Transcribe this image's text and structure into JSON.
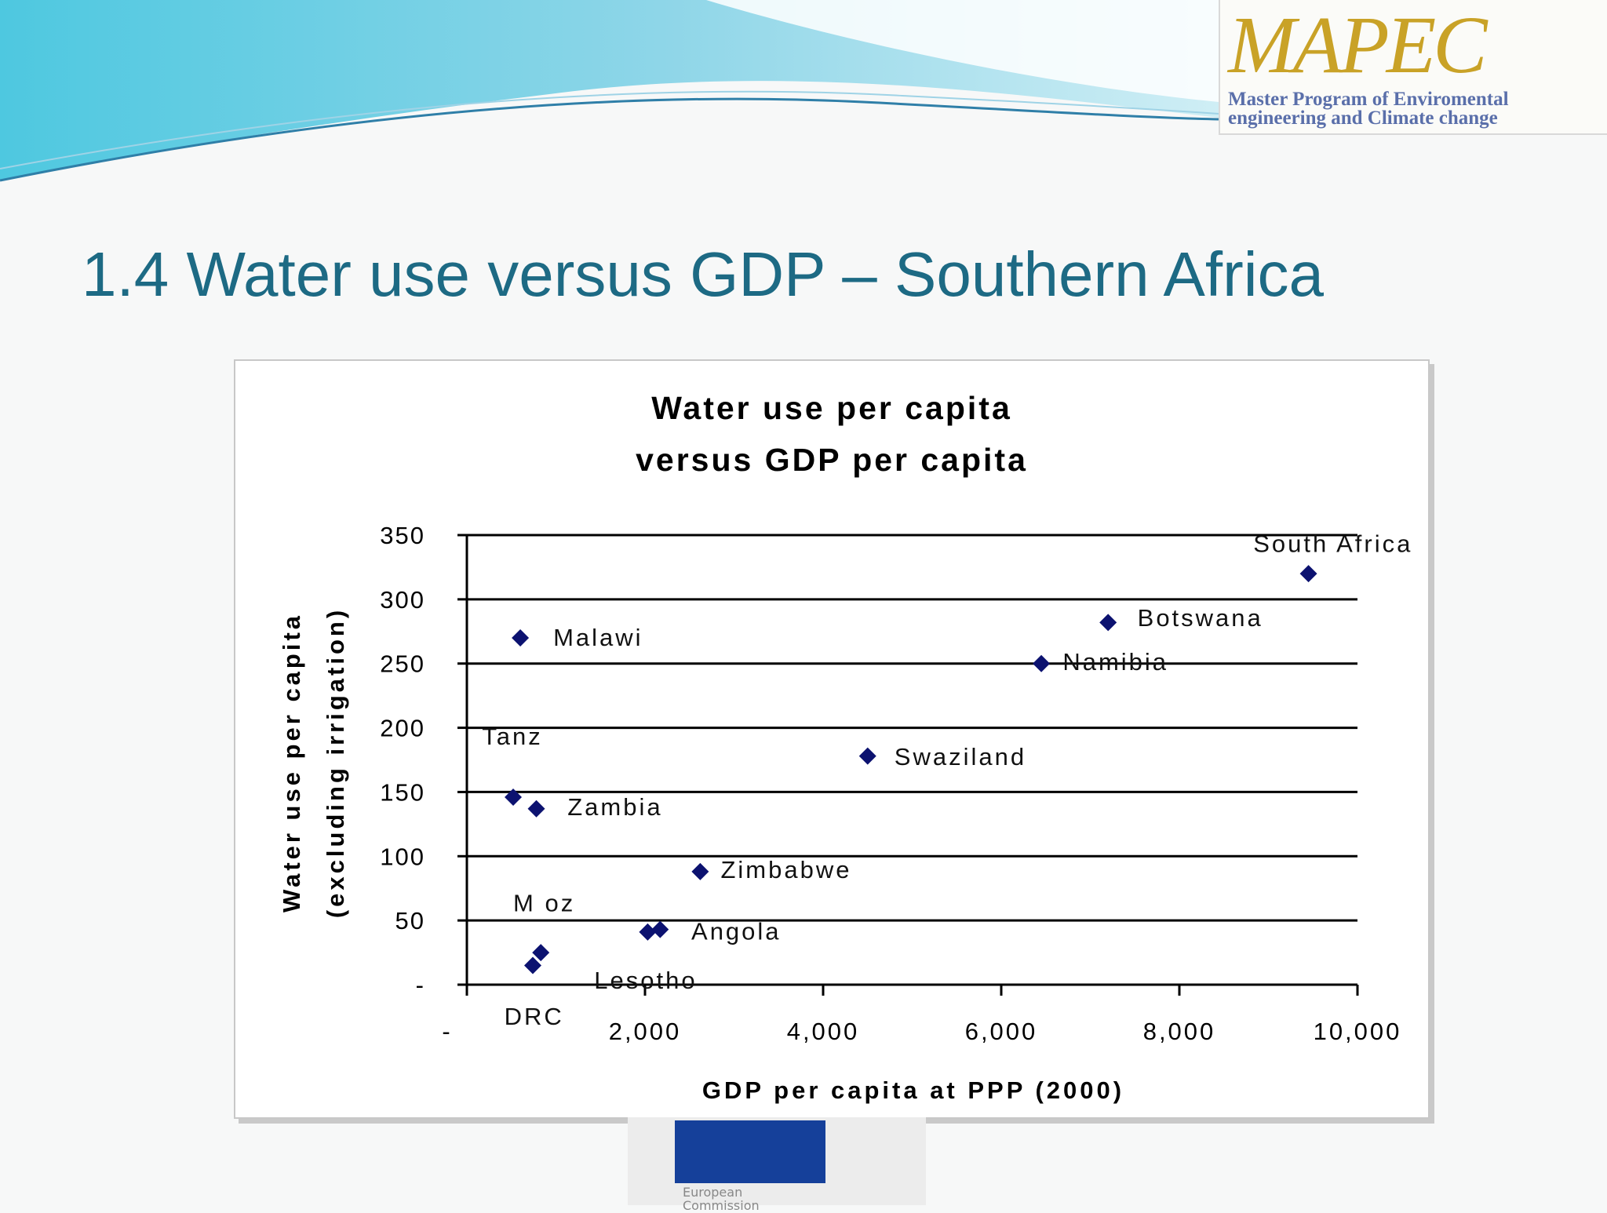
{
  "slide": {
    "title": "1.4 Water use versus GDP – Southern Africa"
  },
  "header_logo": {
    "wordmark": "MAPEC",
    "line1": "Master Program of Enviromental",
    "line2": "engineering and Climate change"
  },
  "footer_logo": {
    "line1": "European",
    "line2": "Commission"
  },
  "colors": {
    "title": "#1d6a84",
    "marker": "#0c1270",
    "logo_gold": "#c9a227",
    "logo_blue": "#5a6faa",
    "eu_blue": "#15409a"
  },
  "chart_data": {
    "type": "scatter",
    "title_lines": [
      "Water use per capita",
      "versus GDP per capita"
    ],
    "xlabel": "GDP per capita at PPP (2000)",
    "ylabel_lines": [
      "Water use per capita",
      "(excluding irrigation)"
    ],
    "xlim": [
      0,
      10000
    ],
    "ylim": [
      0,
      350
    ],
    "x_ticks": [
      0,
      2000,
      4000,
      6000,
      8000,
      10000
    ],
    "x_tick_labels": [
      "-",
      "2,000",
      "4,000",
      "6,000",
      "8,000",
      "10,000"
    ],
    "y_ticks": [
      0,
      50,
      100,
      150,
      200,
      250,
      300,
      350
    ],
    "y_tick_labels": [
      "-",
      "50",
      "100",
      "150",
      "200",
      "250",
      "300",
      "350"
    ],
    "grid": "horizontal",
    "marker": "diamond",
    "points": [
      {
        "x": 9450,
        "y": 320
      },
      {
        "x": 7200,
        "y": 282
      },
      {
        "x": 6450,
        "y": 250
      },
      {
        "x": 4500,
        "y": 178
      },
      {
        "x": 600,
        "y": 270
      },
      {
        "x": 520,
        "y": 146
      },
      {
        "x": 780,
        "y": 137
      },
      {
        "x": 2620,
        "y": 88
      },
      {
        "x": 2030,
        "y": 41
      },
      {
        "x": 2170,
        "y": 43
      },
      {
        "x": 830,
        "y": 25
      },
      {
        "x": 740,
        "y": 15
      }
    ],
    "annotations": [
      {
        "text": "South Africa",
        "x": 8830,
        "y": 337
      },
      {
        "text": "Botswana",
        "x": 7530,
        "y": 279
      },
      {
        "text": "Namibia",
        "x": 6690,
        "y": 245
      },
      {
        "text": "Swaziland",
        "x": 4800,
        "y": 171
      },
      {
        "text": "Malawi",
        "x": 970,
        "y": 264
      },
      {
        "text": "Tanz",
        "x": 170,
        "y": 187
      },
      {
        "text": "Zambia",
        "x": 1130,
        "y": 132
      },
      {
        "text": "Zimbabwe",
        "x": 2850,
        "y": 83
      },
      {
        "text": "Angola",
        "x": 2520,
        "y": 35
      },
      {
        "text": "M oz",
        "x": 520,
        "y": 57
      },
      {
        "text": "Lesotho",
        "x": 1430,
        "y": -3
      },
      {
        "text": "DRC",
        "x": 420,
        "y": -31
      }
    ]
  }
}
